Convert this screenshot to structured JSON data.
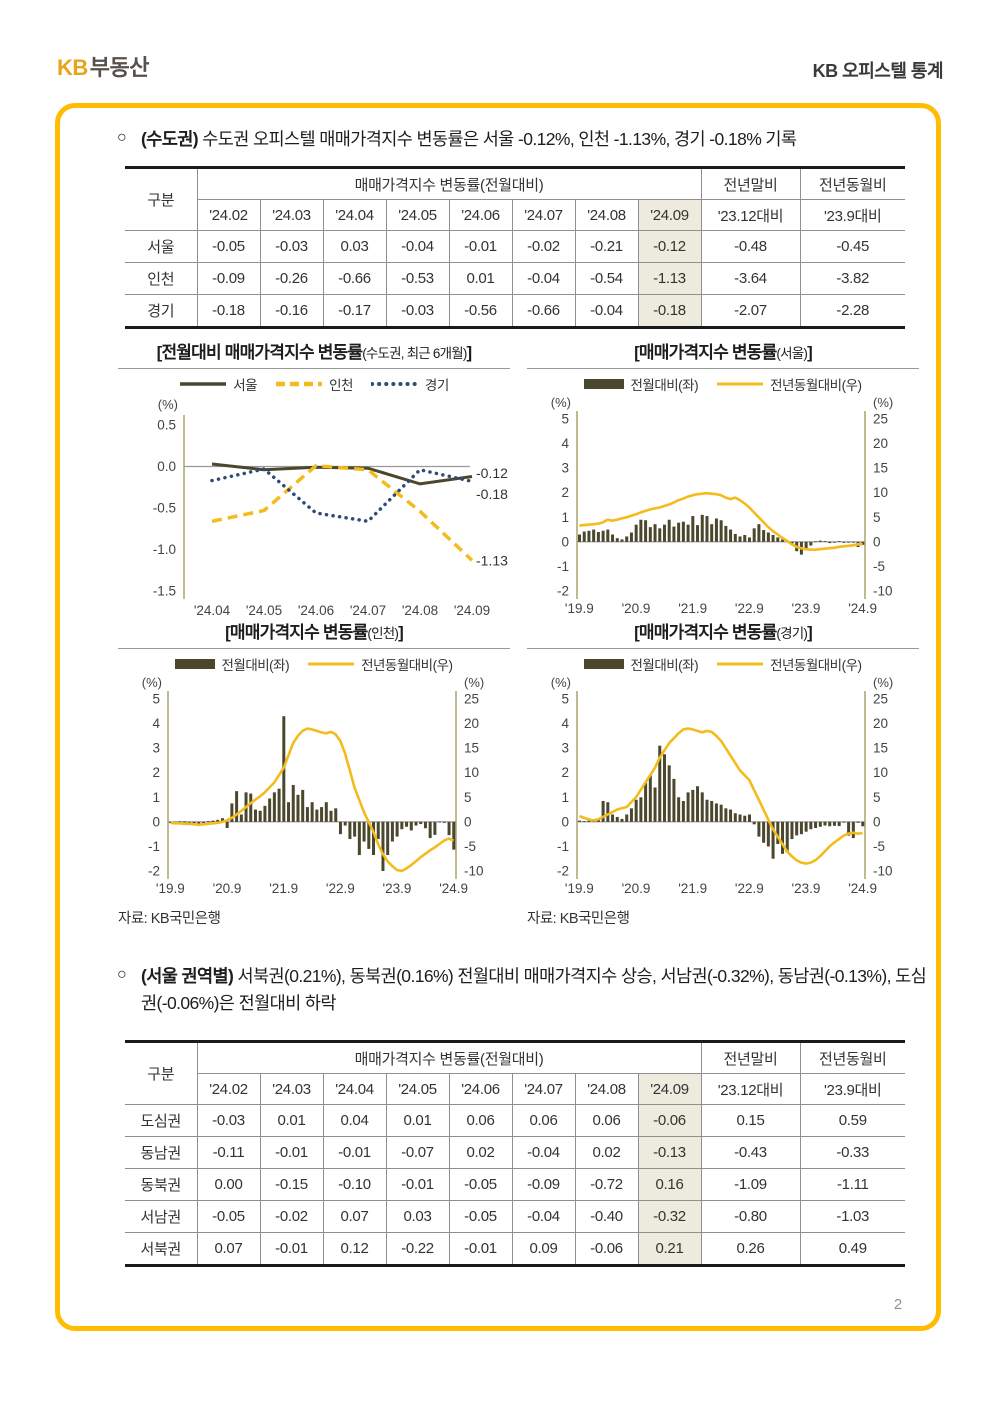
{
  "header": {
    "logo_kb": "KB",
    "logo_suffix": "부동산",
    "doc_title": "KB 오피스텔 통계"
  },
  "page_number": "2",
  "source_note": "자료: KB국민은행",
  "colors": {
    "brand_yellow": "#FFBC00",
    "logo_gold": "#E9A31B",
    "dark_olive": "#4A472D",
    "line_yellow": "#F3BC1C",
    "line_navy": "#2E4C72",
    "axis_khaki": "#ABA36B",
    "highlight_bg": "#ECEBDD"
  },
  "bullet1": {
    "marker": "○",
    "bold": "(수도권)",
    "text": "수도권 오피스텔 매매가격지수 변동률은 서울 -0.12%, 인천 -1.13%, 경기 -0.18% 기록"
  },
  "bullet2": {
    "marker": "○",
    "bold": "(서울 권역별)",
    "text": "서북권(0.21%), 동북권(0.16%) 전월대비 매매가격지수 상승, 서남권(-0.32%), 동남권(-0.13%), 도심권(-0.06%)은 전월대비 하락"
  },
  "table1": {
    "corner_label": "구분",
    "group_header": "매매가격지수 변동률(전월대비)",
    "yearend_header": "전년말비",
    "yoy_header": "전년동월비",
    "month_cols": [
      "'24.02",
      "'24.03",
      "'24.04",
      "'24.05",
      "'24.06",
      "'24.07",
      "'24.08",
      "'24.09"
    ],
    "yearend_sub": "'23.12대비",
    "yoy_sub": "'23.9대비",
    "highlight_index": 7,
    "rows": [
      {
        "label": "서울",
        "values": [
          "-0.05",
          "-0.03",
          "0.03",
          "-0.04",
          "-0.01",
          "-0.02",
          "-0.21",
          "-0.12",
          "-0.48",
          "-0.45"
        ]
      },
      {
        "label": "인천",
        "values": [
          "-0.09",
          "-0.26",
          "-0.66",
          "-0.53",
          "0.01",
          "-0.04",
          "-0.54",
          "-1.13",
          "-3.64",
          "-3.82"
        ]
      },
      {
        "label": "경기",
        "values": [
          "-0.18",
          "-0.16",
          "-0.17",
          "-0.03",
          "-0.56",
          "-0.66",
          "-0.04",
          "-0.18",
          "-2.07",
          "-2.28"
        ]
      }
    ]
  },
  "table2": {
    "corner_label": "구분",
    "group_header": "매매가격지수 변동률(전월대비)",
    "yearend_header": "전년말비",
    "yoy_header": "전년동월비",
    "month_cols": [
      "'24.02",
      "'24.03",
      "'24.04",
      "'24.05",
      "'24.06",
      "'24.07",
      "'24.08",
      "'24.09"
    ],
    "yearend_sub": "'23.12대비",
    "yoy_sub": "'23.9대비",
    "highlight_index": 7,
    "rows": [
      {
        "label": "도심권",
        "values": [
          "-0.03",
          "0.01",
          "0.04",
          "0.01",
          "0.06",
          "0.06",
          "0.06",
          "-0.06",
          "0.15",
          "0.59"
        ]
      },
      {
        "label": "동남권",
        "values": [
          "-0.11",
          "-0.01",
          "-0.01",
          "-0.07",
          "0.02",
          "-0.04",
          "0.02",
          "-0.13",
          "-0.43",
          "-0.33"
        ]
      },
      {
        "label": "동북권",
        "values": [
          "0.00",
          "-0.15",
          "-0.10",
          "-0.01",
          "-0.05",
          "-0.09",
          "-0.72",
          "0.16",
          "-1.09",
          "-1.11"
        ]
      },
      {
        "label": "서남권",
        "values": [
          "-0.05",
          "-0.02",
          "0.07",
          "0.03",
          "-0.05",
          "-0.04",
          "-0.40",
          "-0.32",
          "-0.80",
          "-1.03"
        ]
      },
      {
        "label": "서북권",
        "values": [
          "0.07",
          "-0.01",
          "0.12",
          "-0.22",
          "-0.01",
          "0.09",
          "-0.06",
          "0.21",
          "0.26",
          "0.49"
        ]
      }
    ]
  },
  "chart_data": [
    {
      "type": "line",
      "title": {
        "bold": "[전월대비 매매가격지수 변동률",
        "small": "(수도권, 최근 6개월)",
        "bracket": "]"
      },
      "unit": "(%)",
      "categories": [
        "'24.04",
        "'24.05",
        "'24.06",
        "'24.07",
        "'24.08",
        "'24.09"
      ],
      "ylim": [
        -1.5,
        0.5
      ],
      "yticks": [
        {
          "label": "0.5",
          "v": 0.5
        },
        {
          "label": "0.0",
          "v": 0
        },
        {
          "label": "-0.5",
          "v": -0.5
        },
        {
          "label": "-1.0",
          "v": -1
        },
        {
          "label": "-1.5",
          "v": -1.5
        }
      ],
      "series": [
        {
          "name": "서울",
          "style": "solid",
          "color": "#4A472D",
          "values": [
            0.03,
            -0.04,
            -0.01,
            -0.02,
            -0.21,
            -0.12
          ]
        },
        {
          "name": "인천",
          "style": "dashed",
          "color": "#F3BC1C",
          "values": [
            -0.66,
            -0.53,
            0.01,
            -0.04,
            -0.54,
            -1.13
          ]
        },
        {
          "name": "경기",
          "style": "dotted",
          "color": "#2E4C72",
          "values": [
            -0.17,
            -0.03,
            -0.56,
            -0.66,
            -0.04,
            -0.18
          ]
        }
      ],
      "end_labels": [
        {
          "text": "-0.12",
          "at": -0.08
        },
        {
          "text": "-0.18",
          "at": -0.33
        },
        {
          "text": "-1.13",
          "at": -1.13
        }
      ],
      "grid": false,
      "legend_position": "top"
    },
    {
      "type": "bar",
      "title": {
        "bold": "[매매가격지수 변동률",
        "small": "(서울)",
        "bracket": "]"
      },
      "unit_left": "(%)",
      "unit_right": "(%)",
      "left_ylim": [
        -2,
        5
      ],
      "right_ylim": [
        -10,
        25
      ],
      "left_ticks": [
        5,
        4,
        3,
        2,
        1,
        0,
        -1,
        -2
      ],
      "right_ticks": [
        25,
        20,
        15,
        10,
        5,
        0,
        -5,
        -10
      ],
      "x_ticks": [
        {
          "label": "'19.9",
          "i": 0
        },
        {
          "label": "'20.9",
          "i": 12
        },
        {
          "label": "'21.9",
          "i": 24
        },
        {
          "label": "'22.9",
          "i": 36
        },
        {
          "label": "'23.9",
          "i": 48
        },
        {
          "label": "'24.9",
          "i": 60
        }
      ],
      "legend": [
        {
          "label": "전월대비(좌)",
          "type": "bar",
          "color": "#4A472D"
        },
        {
          "label": "전년동월대비(우)",
          "type": "line",
          "color": "#F3BC1C"
        }
      ],
      "bars": [
        0.3,
        0.42,
        0.45,
        0.5,
        0.4,
        0.45,
        0.5,
        0.3,
        0.15,
        0.1,
        0.22,
        0.38,
        0.7,
        0.9,
        0.88,
        0.6,
        0.72,
        0.55,
        0.7,
        0.9,
        0.62,
        0.78,
        0.82,
        0.7,
        1.05,
        0.68,
        1.1,
        1.05,
        0.72,
        0.95,
        0.88,
        0.65,
        0.5,
        0.32,
        0.22,
        0.28,
        0.18,
        0.55,
        0.72,
        0.48,
        0.38,
        0.28,
        0.18,
        0.1,
        0.05,
        -0.12,
        -0.38,
        -0.52,
        -0.35,
        -0.15,
        0.02,
        0.05,
        0.03,
        -0.05,
        -0.03,
        0.03,
        -0.04,
        -0.01,
        -0.02,
        -0.21,
        -0.12
      ],
      "line": [
        3.3,
        3.4,
        3.5,
        3.6,
        3.7,
        4.0,
        4.5,
        4.3,
        4.5,
        4.8,
        5.0,
        5.3,
        5.6,
        6.0,
        6.3,
        6.6,
        6.8,
        7.0,
        7.3,
        7.6,
        8.0,
        8.5,
        8.8,
        9.2,
        9.5,
        9.7,
        9.8,
        9.9,
        9.8,
        9.7,
        9.5,
        9.0,
        8.7,
        9.0,
        8.5,
        7.8,
        7.0,
        6.0,
        5.0,
        4.0,
        3.0,
        2.2,
        1.5,
        0.8,
        0.2,
        -0.5,
        -1.0,
        -1.3,
        -1.5,
        -1.6,
        -1.6,
        -1.5,
        -1.4,
        -1.3,
        -1.2,
        -1.0,
        -0.9,
        -0.8,
        -0.7,
        -0.5,
        -0.45
      ]
    },
    {
      "type": "bar",
      "title": {
        "bold": "[매매가격지수 변동률",
        "small": "(인천)",
        "bracket": "]"
      },
      "unit_left": "(%)",
      "unit_right": "(%)",
      "left_ylim": [
        -2,
        5
      ],
      "right_ylim": [
        -10,
        25
      ],
      "left_ticks": [
        5,
        4,
        3,
        2,
        1,
        0,
        -1,
        -2
      ],
      "right_ticks": [
        25,
        20,
        15,
        10,
        5,
        0,
        -5,
        -10
      ],
      "x_ticks": [
        {
          "label": "'19.9",
          "i": 0
        },
        {
          "label": "'20.9",
          "i": 12
        },
        {
          "label": "'21.9",
          "i": 24
        },
        {
          "label": "'22.9",
          "i": 36
        },
        {
          "label": "'23.9",
          "i": 48
        },
        {
          "label": "'24.9",
          "i": 60
        }
      ],
      "legend": [
        {
          "label": "전월대비(좌)",
          "type": "bar",
          "color": "#4A472D"
        },
        {
          "label": "전년동월대비(우)",
          "type": "line",
          "color": "#F3BC1C"
        }
      ],
      "bars": [
        -0.05,
        -0.02,
        0.02,
        0.02,
        -0.02,
        -0.08,
        -0.12,
        -0.05,
        0.03,
        0.05,
        0.08,
        0.15,
        -0.25,
        0.75,
        1.25,
        0.3,
        1.2,
        1.15,
        0.5,
        0.45,
        0.65,
        0.95,
        1.2,
        1.35,
        4.3,
        0.8,
        1.5,
        1.1,
        1.3,
        0.6,
        0.8,
        0.5,
        0.6,
        0.8,
        0.45,
        0.55,
        -0.5,
        -0.15,
        -0.7,
        -0.6,
        -1.35,
        -0.8,
        -1.1,
        -1.35,
        -0.7,
        -2.0,
        -1.35,
        -0.8,
        -0.6,
        -0.3,
        -0.2,
        -0.35,
        -0.15,
        -0.09,
        -0.26,
        -0.66,
        -0.53,
        0.01,
        -0.04,
        -0.54,
        -1.13
      ],
      "line": [
        -0.2,
        -0.3,
        -0.3,
        -0.4,
        -0.4,
        -0.5,
        -0.6,
        -0.5,
        -0.4,
        -0.3,
        -0.2,
        0.0,
        0.3,
        0.8,
        1.5,
        2.2,
        3.0,
        3.8,
        4.5,
        5.2,
        6.0,
        7.0,
        8.0,
        9.5,
        11.0,
        13.5,
        16.0,
        17.5,
        18.5,
        19.0,
        18.8,
        18.5,
        18.2,
        18.0,
        18.3,
        17.8,
        16.5,
        14.0,
        10.5,
        7.0,
        4.5,
        2.0,
        0.0,
        -2.0,
        -4.5,
        -6.5,
        -8.0,
        -9.0,
        -9.8,
        -10.0,
        -9.5,
        -8.8,
        -8.0,
        -7.2,
        -6.5,
        -5.8,
        -5.2,
        -4.5,
        -3.8,
        -3.4,
        -3.82
      ]
    },
    {
      "type": "bar",
      "title": {
        "bold": "[매매가격지수 변동률",
        "small": "(경기)",
        "bracket": "]"
      },
      "unit_left": "(%)",
      "unit_right": "(%)",
      "left_ylim": [
        -2,
        5
      ],
      "right_ylim": [
        -10,
        25
      ],
      "left_ticks": [
        5,
        4,
        3,
        2,
        1,
        0,
        -1,
        -2
      ],
      "right_ticks": [
        25,
        20,
        15,
        10,
        5,
        0,
        -5,
        -10
      ],
      "x_ticks": [
        {
          "label": "'19.9",
          "i": 0
        },
        {
          "label": "'20.9",
          "i": 12
        },
        {
          "label": "'21.9",
          "i": 24
        },
        {
          "label": "'22.9",
          "i": 36
        },
        {
          "label": "'23.9",
          "i": 48
        },
        {
          "label": "'24.9",
          "i": 60
        }
      ],
      "legend": [
        {
          "label": "전월대비(좌)",
          "type": "bar",
          "color": "#4A472D"
        },
        {
          "label": "전년동월대비(우)",
          "type": "line",
          "color": "#F3BC1C"
        }
      ],
      "bars": [
        0.05,
        0.03,
        0.05,
        0.08,
        0.1,
        0.85,
        0.8,
        0.3,
        0.2,
        0.12,
        0.3,
        0.55,
        0.9,
        1.0,
        1.6,
        1.9,
        1.4,
        3.1,
        2.75,
        2.3,
        1.75,
        1.0,
        0.85,
        1.2,
        1.3,
        1.45,
        1.2,
        0.9,
        0.85,
        0.75,
        0.7,
        0.55,
        0.5,
        0.35,
        0.3,
        0.25,
        0.3,
        -0.1,
        -0.6,
        -0.85,
        -1.0,
        -1.5,
        -0.9,
        -1.3,
        -1.25,
        -0.7,
        -0.55,
        -0.5,
        -0.4,
        -0.3,
        -0.25,
        -0.2,
        -0.15,
        -0.18,
        -0.16,
        -0.17,
        -0.03,
        -0.56,
        -0.66,
        -0.04,
        -0.18
      ],
      "line": [
        1.2,
        0.8,
        0.5,
        0.3,
        0.5,
        1.0,
        1.5,
        2.0,
        2.5,
        2.8,
        3.0,
        4.0,
        5.0,
        6.5,
        8.0,
        9.5,
        11.0,
        13.0,
        14.5,
        16.0,
        17.0,
        18.0,
        18.8,
        19.0,
        18.8,
        18.5,
        18.2,
        18.5,
        18.3,
        17.5,
        16.5,
        15.0,
        13.5,
        12.0,
        10.5,
        9.5,
        8.5,
        6.5,
        4.5,
        2.5,
        0.5,
        -1.5,
        -3.0,
        -4.5,
        -6.0,
        -7.0,
        -7.8,
        -8.3,
        -8.5,
        -8.3,
        -7.8,
        -7.0,
        -6.0,
        -5.0,
        -4.2,
        -3.5,
        -2.8,
        -2.4,
        -2.2,
        -2.4,
        -2.28
      ]
    }
  ]
}
